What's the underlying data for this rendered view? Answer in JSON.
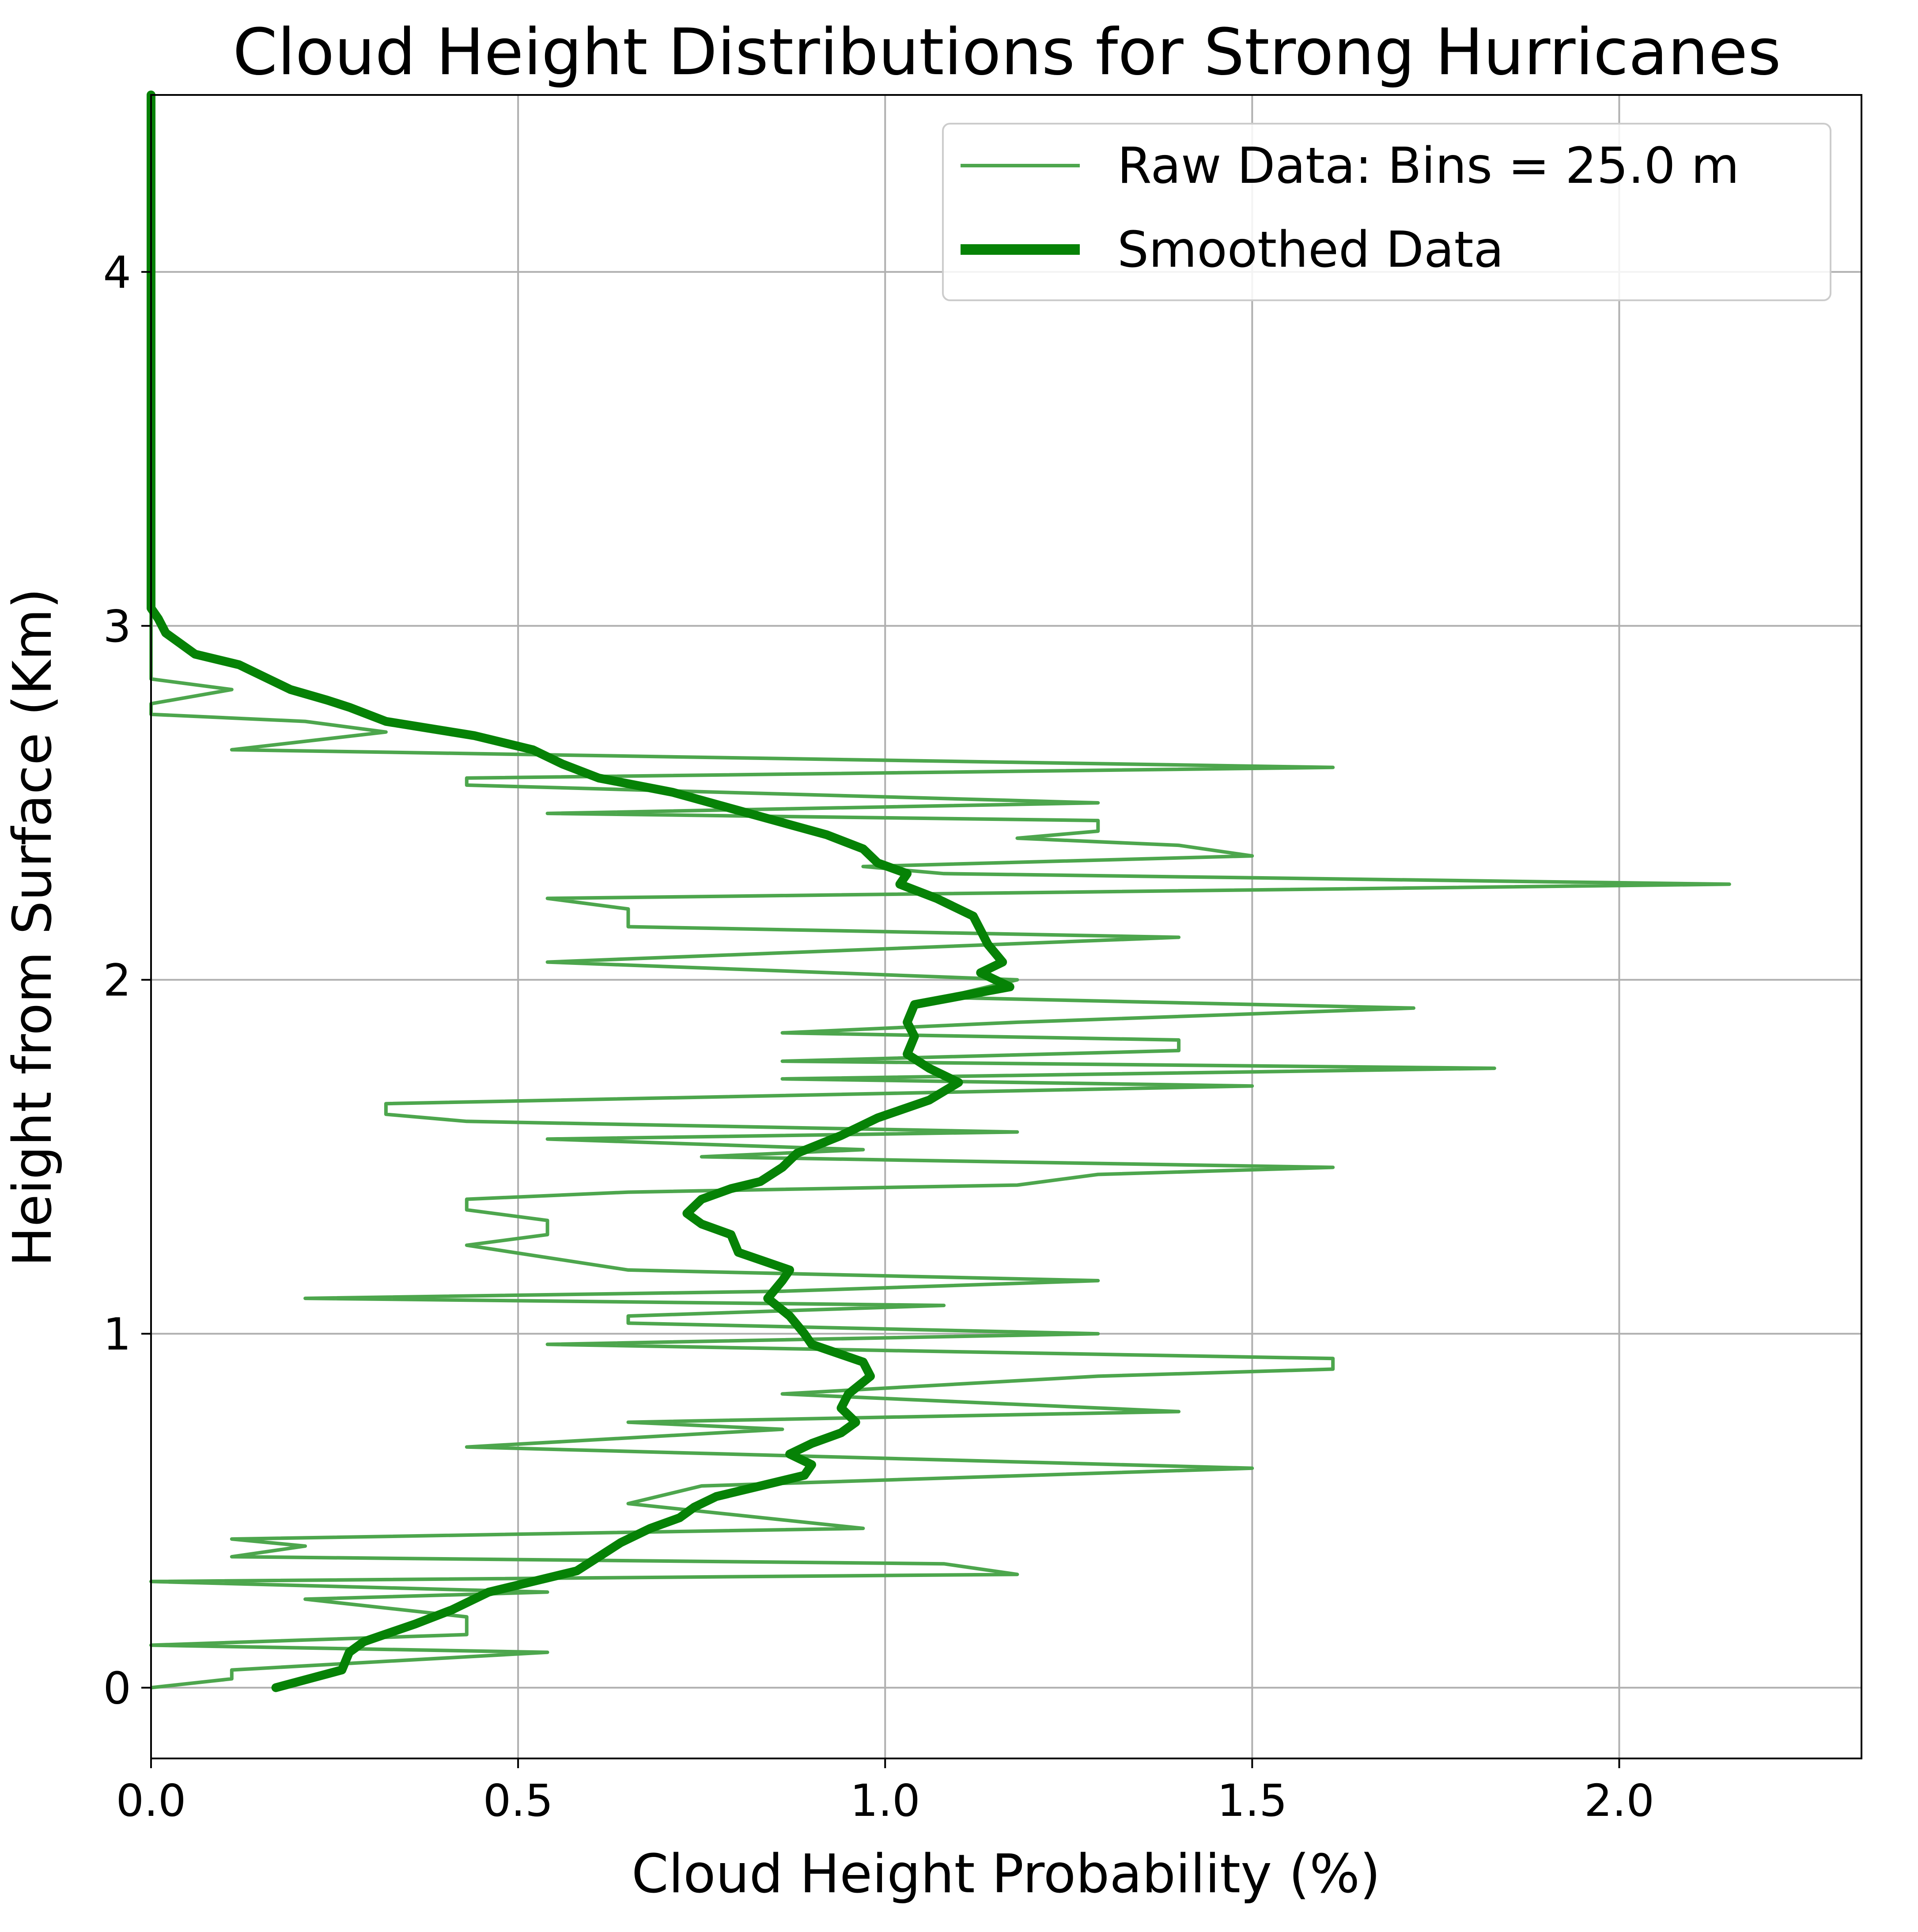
{
  "chart_data": {
    "type": "line",
    "orientation": "horizontal-profile",
    "title": "Cloud Height Distributions for Strong Hurricanes",
    "xlabel": "Cloud Height Probability (%)",
    "ylabel": "Height from Surface (Km)",
    "xlim": [
      0,
      2.33
    ],
    "ylim": [
      -0.2,
      4.5
    ],
    "xticks": [
      {
        "value": 0.0,
        "label": "0.0"
      },
      {
        "value": 0.5,
        "label": "0.5"
      },
      {
        "value": 1.0,
        "label": "1.0"
      },
      {
        "value": 1.5,
        "label": "1.5"
      },
      {
        "value": 2.0,
        "label": "2.0"
      }
    ],
    "yticks": [
      {
        "value": 0,
        "label": "0"
      },
      {
        "value": 1,
        "label": "1"
      },
      {
        "value": 2,
        "label": "2"
      },
      {
        "value": 3,
        "label": "3"
      },
      {
        "value": 4,
        "label": "4"
      }
    ],
    "grid": true,
    "legend_position": "top-right",
    "colors": {
      "raw": "#4da64d",
      "smoothed": "#068206",
      "grid": "#b0b0b0"
    },
    "series": [
      {
        "name": "Raw Data: Bins = 25.0 m",
        "style": "thin",
        "points": [
          [
            0.0,
            0.0
          ],
          [
            0.11,
            0.025
          ],
          [
            0.11,
            0.05
          ],
          [
            0.54,
            0.1
          ],
          [
            0.0,
            0.12
          ],
          [
            0.43,
            0.15
          ],
          [
            0.43,
            0.2
          ],
          [
            0.21,
            0.25
          ],
          [
            0.54,
            0.27
          ],
          [
            0.0,
            0.3
          ],
          [
            1.18,
            0.32
          ],
          [
            1.08,
            0.35
          ],
          [
            0.11,
            0.37
          ],
          [
            0.21,
            0.4
          ],
          [
            0.11,
            0.42
          ],
          [
            0.97,
            0.45
          ],
          [
            0.65,
            0.52
          ],
          [
            0.75,
            0.57
          ],
          [
            1.5,
            0.62
          ],
          [
            0.43,
            0.68
          ],
          [
            0.86,
            0.73
          ],
          [
            0.65,
            0.75
          ],
          [
            1.4,
            0.78
          ],
          [
            0.86,
            0.83
          ],
          [
            1.29,
            0.88
          ],
          [
            1.61,
            0.9
          ],
          [
            1.61,
            0.93
          ],
          [
            0.54,
            0.97
          ],
          [
            1.29,
            1.0
          ],
          [
            0.65,
            1.03
          ],
          [
            0.65,
            1.05
          ],
          [
            1.08,
            1.08
          ],
          [
            0.21,
            1.1
          ],
          [
            0.86,
            1.12
          ],
          [
            1.29,
            1.15
          ],
          [
            0.65,
            1.18
          ],
          [
            0.43,
            1.25
          ],
          [
            0.54,
            1.28
          ],
          [
            0.54,
            1.32
          ],
          [
            0.43,
            1.35
          ],
          [
            0.43,
            1.38
          ],
          [
            0.65,
            1.4
          ],
          [
            1.18,
            1.42
          ],
          [
            1.29,
            1.45
          ],
          [
            1.61,
            1.47
          ],
          [
            0.75,
            1.5
          ],
          [
            0.97,
            1.52
          ],
          [
            0.54,
            1.55
          ],
          [
            1.18,
            1.57
          ],
          [
            0.43,
            1.6
          ],
          [
            0.32,
            1.62
          ],
          [
            0.32,
            1.65
          ],
          [
            1.5,
            1.7
          ],
          [
            0.86,
            1.72
          ],
          [
            1.83,
            1.75
          ],
          [
            0.86,
            1.77
          ],
          [
            1.4,
            1.8
          ],
          [
            1.4,
            1.83
          ],
          [
            0.86,
            1.85
          ],
          [
            1.18,
            1.88
          ],
          [
            1.72,
            1.92
          ],
          [
            1.08,
            1.95
          ],
          [
            1.18,
            2.0
          ],
          [
            0.54,
            2.05
          ],
          [
            1.4,
            2.12
          ],
          [
            0.65,
            2.15
          ],
          [
            0.65,
            2.2
          ],
          [
            0.54,
            2.23
          ],
          [
            2.15,
            2.27
          ],
          [
            1.08,
            2.3
          ],
          [
            0.97,
            2.32
          ],
          [
            1.5,
            2.35
          ],
          [
            1.4,
            2.38
          ],
          [
            1.18,
            2.4
          ],
          [
            1.29,
            2.42
          ],
          [
            1.29,
            2.45
          ],
          [
            0.54,
            2.47
          ],
          [
            1.29,
            2.5
          ],
          [
            0.43,
            2.55
          ],
          [
            0.43,
            2.57
          ],
          [
            1.61,
            2.6
          ],
          [
            0.11,
            2.65
          ],
          [
            0.32,
            2.7
          ],
          [
            0.21,
            2.73
          ],
          [
            0.0,
            2.75
          ],
          [
            0.0,
            2.78
          ],
          [
            0.11,
            2.82
          ],
          [
            0.0,
            2.85
          ],
          [
            0.0,
            3.0
          ],
          [
            0.0,
            4.5
          ]
        ]
      },
      {
        "name": "Smoothed Data",
        "style": "thick",
        "points": [
          [
            0.17,
            0.0
          ],
          [
            0.26,
            0.05
          ],
          [
            0.27,
            0.1
          ],
          [
            0.29,
            0.13
          ],
          [
            0.36,
            0.18
          ],
          [
            0.41,
            0.22
          ],
          [
            0.46,
            0.27
          ],
          [
            0.52,
            0.3
          ],
          [
            0.58,
            0.33
          ],
          [
            0.61,
            0.37
          ],
          [
            0.64,
            0.41
          ],
          [
            0.68,
            0.45
          ],
          [
            0.72,
            0.48
          ],
          [
            0.74,
            0.51
          ],
          [
            0.77,
            0.54
          ],
          [
            0.83,
            0.57
          ],
          [
            0.89,
            0.6
          ],
          [
            0.9,
            0.63
          ],
          [
            0.87,
            0.66
          ],
          [
            0.9,
            0.69
          ],
          [
            0.94,
            0.72
          ],
          [
            0.96,
            0.75
          ],
          [
            0.94,
            0.79
          ],
          [
            0.95,
            0.83
          ],
          [
            0.98,
            0.88
          ],
          [
            0.97,
            0.92
          ],
          [
            0.9,
            0.97
          ],
          [
            0.89,
            1.0
          ],
          [
            0.87,
            1.05
          ],
          [
            0.84,
            1.1
          ],
          [
            0.86,
            1.15
          ],
          [
            0.87,
            1.18
          ],
          [
            0.8,
            1.23
          ],
          [
            0.79,
            1.28
          ],
          [
            0.75,
            1.31
          ],
          [
            0.73,
            1.34
          ],
          [
            0.75,
            1.38
          ],
          [
            0.79,
            1.41
          ],
          [
            0.83,
            1.43
          ],
          [
            0.86,
            1.47
          ],
          [
            0.88,
            1.51
          ],
          [
            0.94,
            1.56
          ],
          [
            0.99,
            1.61
          ],
          [
            1.06,
            1.66
          ],
          [
            1.1,
            1.71
          ],
          [
            1.06,
            1.75
          ],
          [
            1.03,
            1.79
          ],
          [
            1.04,
            1.84
          ],
          [
            1.03,
            1.88
          ],
          [
            1.04,
            1.93
          ],
          [
            1.17,
            1.98
          ],
          [
            1.13,
            2.02
          ],
          [
            1.16,
            2.05
          ],
          [
            1.14,
            2.1
          ],
          [
            1.13,
            2.14
          ],
          [
            1.12,
            2.18
          ],
          [
            1.07,
            2.23
          ],
          [
            1.02,
            2.27
          ],
          [
            1.03,
            2.3
          ],
          [
            0.99,
            2.33
          ],
          [
            0.97,
            2.37
          ],
          [
            0.92,
            2.41
          ],
          [
            0.85,
            2.45
          ],
          [
            0.78,
            2.49
          ],
          [
            0.71,
            2.53
          ],
          [
            0.61,
            2.57
          ],
          [
            0.56,
            2.61
          ],
          [
            0.52,
            2.65
          ],
          [
            0.44,
            2.69
          ],
          [
            0.32,
            2.73
          ],
          [
            0.27,
            2.77
          ],
          [
            0.24,
            2.79
          ],
          [
            0.19,
            2.82
          ],
          [
            0.16,
            2.85
          ],
          [
            0.12,
            2.89
          ],
          [
            0.06,
            2.92
          ],
          [
            0.04,
            2.95
          ],
          [
            0.02,
            2.98
          ],
          [
            0.01,
            3.02
          ],
          [
            0.0,
            3.05
          ],
          [
            0.0,
            3.15
          ],
          [
            0.0,
            4.5
          ]
        ]
      }
    ]
  }
}
